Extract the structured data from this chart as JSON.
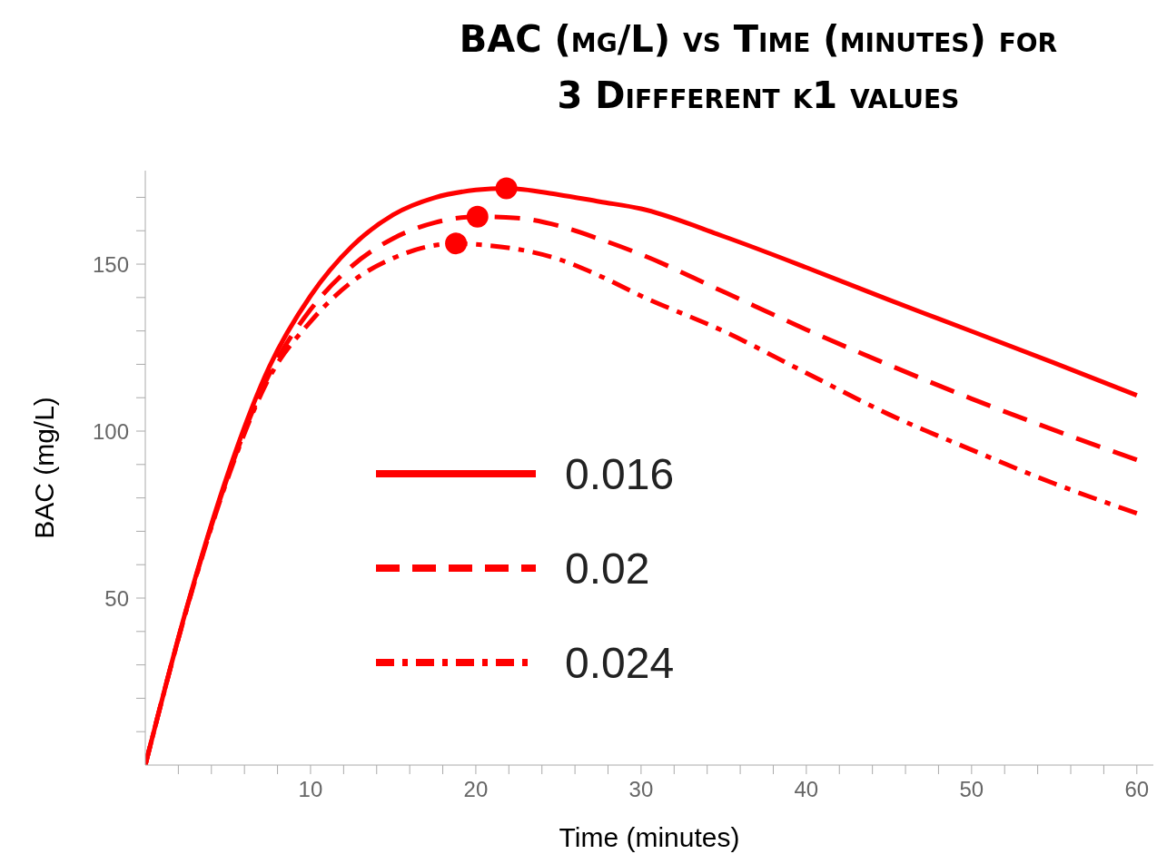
{
  "chart_data": {
    "type": "line",
    "title": "BAC (mg/L) vs Time (minutes) for 3 Diffferent k1 values",
    "xlabel": "Time (minutes)",
    "ylabel": "BAC (mg/L)",
    "xlim": [
      0,
      61
    ],
    "ylim": [
      0,
      178
    ],
    "xticks": [
      {
        "value": 2,
        "label": null
      },
      {
        "value": 4,
        "label": null
      },
      {
        "value": 6,
        "label": null
      },
      {
        "value": 8,
        "label": null
      },
      10,
      {
        "value": 12,
        "label": null
      },
      {
        "value": 14,
        "label": null
      },
      {
        "value": 16,
        "label": null
      },
      {
        "value": 18,
        "label": null
      },
      20,
      {
        "value": 22,
        "label": null
      },
      {
        "value": 24,
        "label": null
      },
      {
        "value": 26,
        "label": null
      },
      {
        "value": 28,
        "label": null
      },
      30,
      {
        "value": 32,
        "label": null
      },
      {
        "value": 34,
        "label": null
      },
      {
        "value": 36,
        "label": null
      },
      {
        "value": 38,
        "label": null
      },
      40,
      {
        "value": 42,
        "label": null
      },
      {
        "value": 44,
        "label": null
      },
      {
        "value": 46,
        "label": null
      },
      {
        "value": 48,
        "label": null
      },
      50,
      {
        "value": 52,
        "label": null
      },
      {
        "value": 54,
        "label": null
      },
      {
        "value": 56,
        "label": null
      },
      {
        "value": 58,
        "label": null
      },
      60
    ],
    "yticks": [
      {
        "value": 10,
        "label": null
      },
      {
        "value": 20,
        "label": null
      },
      {
        "value": 30,
        "label": null
      },
      {
        "value": 40,
        "label": null
      },
      50,
      {
        "value": 60,
        "label": null
      },
      {
        "value": 70,
        "label": null
      },
      {
        "value": 80,
        "label": null
      },
      {
        "value": 90,
        "label": null
      },
      100,
      {
        "value": 110,
        "label": null
      },
      {
        "value": 120,
        "label": null
      },
      {
        "value": 130,
        "label": null
      },
      {
        "value": 140,
        "label": null
      },
      150,
      {
        "value": 160,
        "label": null
      },
      {
        "value": 170,
        "label": null
      }
    ],
    "grid": false,
    "legend": "bottom left",
    "marker": "none",
    "series": [
      {
        "name": "0.016",
        "color": "#ff0000",
        "line_style": "solid",
        "x": [
          0,
          2.5,
          5,
          7.5,
          10,
          12.5,
          15,
          17.5,
          20,
          21.85,
          25,
          27.5,
          30,
          35,
          40,
          45,
          50,
          55,
          60
        ],
        "values": [
          0,
          47,
          87.3,
          119.2,
          140.5,
          155.3,
          164.8,
          169.9,
          172.2,
          172.7,
          170.8,
          168.7,
          166.6,
          158.3,
          149,
          139.3,
          129.9,
          120.4,
          110.7
        ]
      },
      {
        "name": "0.02",
        "color": "#ff0000",
        "line_style": "dashed",
        "x": [
          0,
          2.5,
          5,
          7.5,
          10,
          12.5,
          15,
          17.5,
          20.1,
          22.5,
          25,
          27.5,
          30,
          35,
          40,
          45,
          50,
          55,
          60
        ],
        "values": [
          0,
          46.8,
          86.5,
          117,
          136.4,
          149.4,
          157.7,
          162.4,
          164.2,
          163.8,
          161.5,
          157.5,
          152.9,
          141.7,
          130.4,
          119.8,
          109.7,
          100.3,
          91.4
        ]
      },
      {
        "name": "0.024",
        "color": "#ff0000",
        "line_style": "dashdot",
        "x": [
          0,
          2.5,
          5,
          7.5,
          10,
          12.5,
          15,
          18.8,
          20,
          22.5,
          25,
          27.5,
          30,
          35,
          40,
          45,
          50,
          55,
          60
        ],
        "values": [
          0,
          46.6,
          86,
          116,
          132.8,
          144.7,
          151.8,
          156.2,
          155.9,
          154.5,
          151.5,
          146.5,
          140.5,
          129.9,
          117.4,
          105,
          94.4,
          84.3,
          75.4
        ]
      },
      {
        "type": "scatter",
        "color": "#ff0000",
        "marker": "circle",
        "x": [
          21.85,
          20.1,
          18.8
        ],
        "values": [
          172.7,
          164.2,
          156.2
        ]
      }
    ]
  }
}
